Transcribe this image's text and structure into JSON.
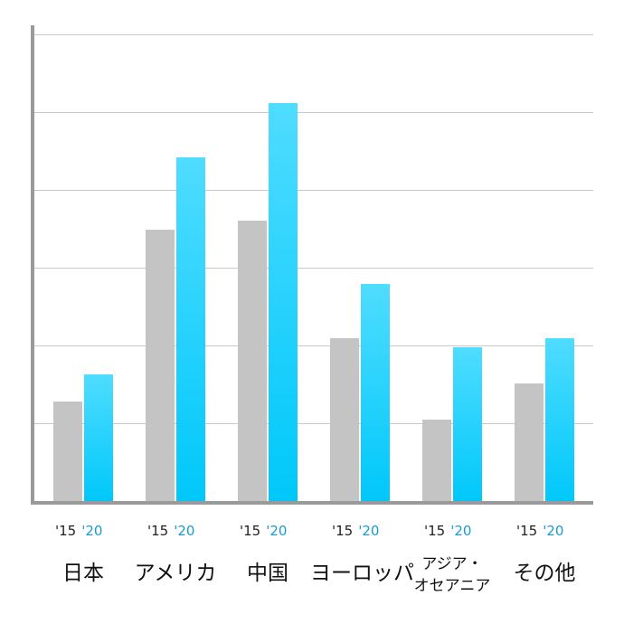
{
  "chart_data": {
    "type": "bar",
    "title": "",
    "xlabel": "",
    "ylabel": "",
    "ylim": [
      0,
      6
    ],
    "grid": true,
    "gridlines": 6,
    "categories": [
      "日本",
      "アメリカ",
      "中国",
      "ヨーロッパ",
      "アジア・オセアニア",
      "その他"
    ],
    "category_display": [
      [
        "日本"
      ],
      [
        "アメリカ"
      ],
      [
        "中国"
      ],
      [
        "ヨーロッパ"
      ],
      [
        "アジア・",
        "オセアニア"
      ],
      [
        "その他"
      ]
    ],
    "series": [
      {
        "name": "'15",
        "color": "#c4c4c4",
        "values": [
          1.28,
          3.49,
          3.6,
          2.09,
          1.05,
          1.51
        ]
      },
      {
        "name": "'20",
        "color": "#00c8fa",
        "values": [
          1.63,
          4.42,
          5.12,
          2.79,
          1.98,
          2.09
        ]
      }
    ],
    "series_label_colors": {
      "'15": "#222222",
      "'20": "#1a9bd0"
    },
    "legend": "per-group labels below bars ('15 / '20)"
  }
}
